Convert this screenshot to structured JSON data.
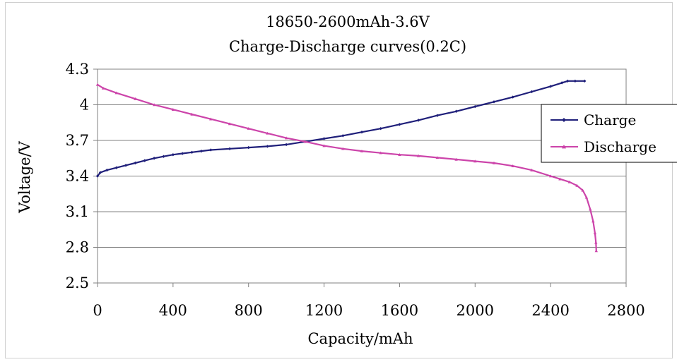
{
  "chart_data": {
    "type": "line",
    "title": "18650-2600mAh-3.6V",
    "subtitle": "Charge-Discharge curves(0.2C)",
    "xlabel": "Capacity/mAh",
    "ylabel": "Voltage/V",
    "xlim": [
      0,
      2800
    ],
    "ylim": [
      2.5,
      4.3
    ],
    "x_ticks": [
      "0",
      "400",
      "800",
      "1200",
      "1600",
      "2000",
      "2400",
      "2800"
    ],
    "y_ticks": [
      "2.5",
      "2.8",
      "3.1",
      "3.4",
      "3.7",
      "4",
      "4.3"
    ],
    "grid": "horizontal",
    "legend_position": "right",
    "series": [
      {
        "name": "Charge",
        "color": "#1f1f7a",
        "marker": "diamond",
        "points": [
          [
            0,
            3.4
          ],
          [
            15,
            3.43
          ],
          [
            50,
            3.45
          ],
          [
            100,
            3.47
          ],
          [
            150,
            3.49
          ],
          [
            200,
            3.51
          ],
          [
            250,
            3.53
          ],
          [
            300,
            3.55
          ],
          [
            350,
            3.565
          ],
          [
            400,
            3.58
          ],
          [
            450,
            3.59
          ],
          [
            500,
            3.6
          ],
          [
            550,
            3.61
          ],
          [
            600,
            3.62
          ],
          [
            700,
            3.63
          ],
          [
            800,
            3.64
          ],
          [
            900,
            3.65
          ],
          [
            1000,
            3.665
          ],
          [
            1100,
            3.69
          ],
          [
            1200,
            3.715
          ],
          [
            1300,
            3.74
          ],
          [
            1400,
            3.77
          ],
          [
            1500,
            3.8
          ],
          [
            1600,
            3.835
          ],
          [
            1700,
            3.87
          ],
          [
            1800,
            3.91
          ],
          [
            1900,
            3.945
          ],
          [
            2000,
            3.985
          ],
          [
            2100,
            4.025
          ],
          [
            2200,
            4.065
          ],
          [
            2300,
            4.11
          ],
          [
            2400,
            4.155
          ],
          [
            2460,
            4.185
          ],
          [
            2490,
            4.2
          ],
          [
            2530,
            4.2
          ],
          [
            2580,
            4.2
          ]
        ]
      },
      {
        "name": "Discharge",
        "color": "#cc44aa",
        "marker": "triangle",
        "points": [
          [
            0,
            4.17
          ],
          [
            30,
            4.14
          ],
          [
            100,
            4.1
          ],
          [
            200,
            4.05
          ],
          [
            300,
            4.0
          ],
          [
            400,
            3.96
          ],
          [
            500,
            3.92
          ],
          [
            600,
            3.88
          ],
          [
            700,
            3.84
          ],
          [
            800,
            3.8
          ],
          [
            900,
            3.76
          ],
          [
            1000,
            3.72
          ],
          [
            1100,
            3.69
          ],
          [
            1200,
            3.655
          ],
          [
            1300,
            3.63
          ],
          [
            1400,
            3.61
          ],
          [
            1500,
            3.595
          ],
          [
            1600,
            3.58
          ],
          [
            1700,
            3.57
          ],
          [
            1800,
            3.555
          ],
          [
            1900,
            3.54
          ],
          [
            2000,
            3.525
          ],
          [
            2100,
            3.51
          ],
          [
            2200,
            3.485
          ],
          [
            2300,
            3.45
          ],
          [
            2400,
            3.4
          ],
          [
            2450,
            3.375
          ],
          [
            2500,
            3.35
          ],
          [
            2540,
            3.32
          ],
          [
            2570,
            3.28
          ],
          [
            2590,
            3.22
          ],
          [
            2610,
            3.12
          ],
          [
            2625,
            3.02
          ],
          [
            2635,
            2.92
          ],
          [
            2640,
            2.84
          ],
          [
            2642,
            2.77
          ]
        ]
      }
    ]
  }
}
